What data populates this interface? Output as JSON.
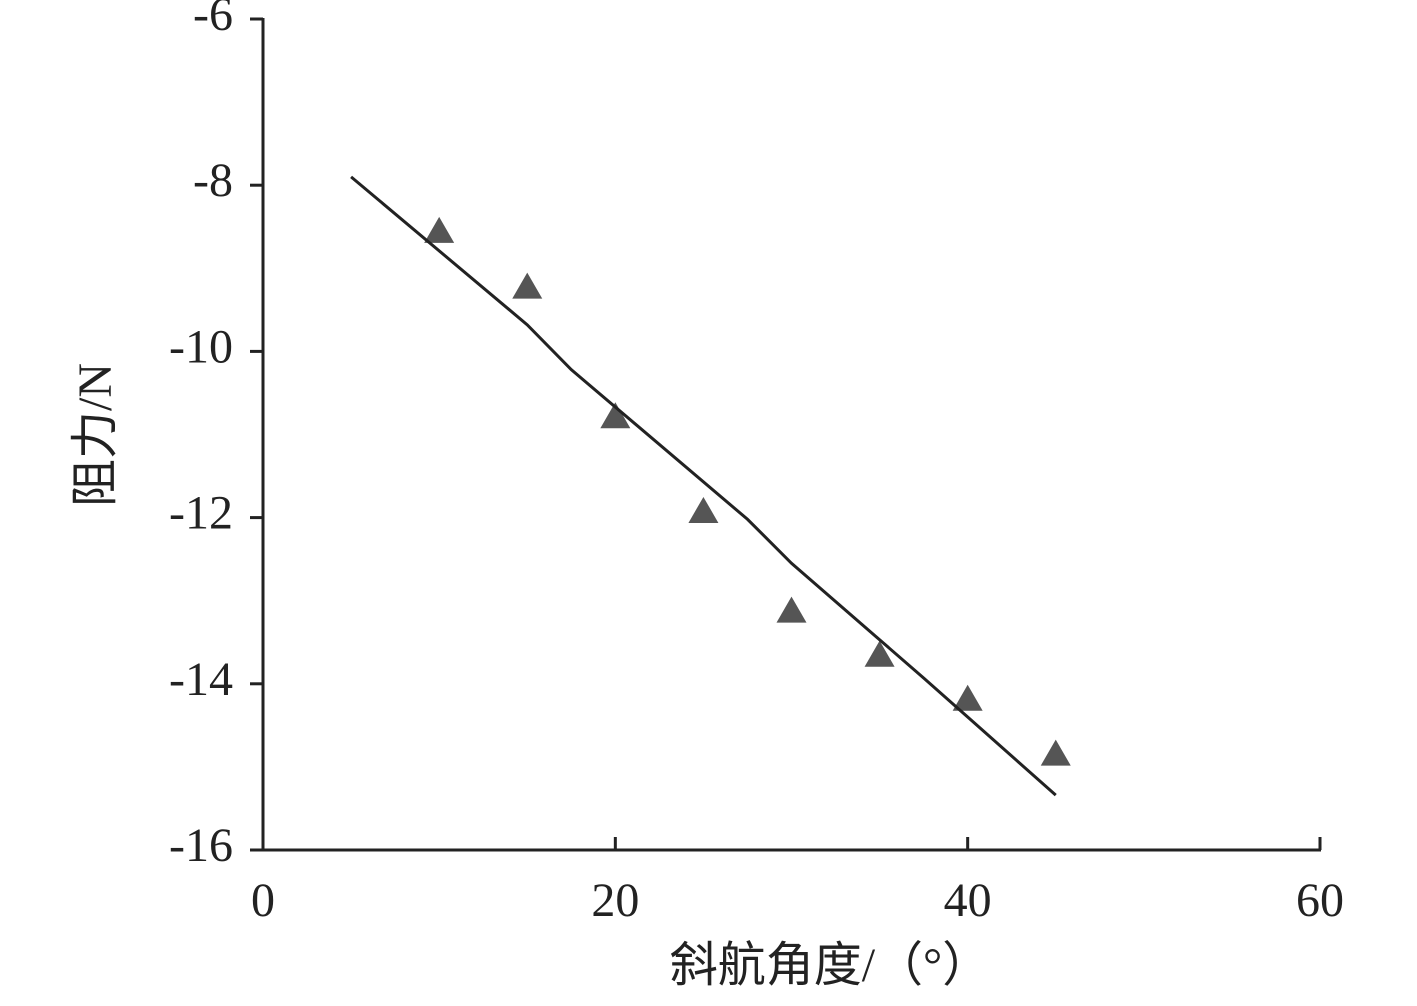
{
  "chart_data": {
    "type": "scatter",
    "x_label": "斜航角度/（°）",
    "y_label": "阻力/N",
    "xlim": [
      0,
      60
    ],
    "xticks": [
      0,
      20,
      40,
      60
    ],
    "ylim": [
      -16,
      -6
    ],
    "yticks": [
      -16,
      -14,
      -12,
      -10,
      -8,
      -6
    ],
    "series": [
      {
        "color": "#555555",
        "marker": "triangle",
        "x": [
          10,
          15,
          20,
          25,
          30,
          35,
          40,
          45
        ],
        "values": [
          -8.55,
          -9.22,
          -10.78,
          -11.92,
          -13.12,
          -13.65,
          -14.18,
          -14.84
        ]
      },
      {
        "color": "#222222",
        "marker": "line",
        "x": [
          5,
          15,
          17.5,
          27.5,
          30,
          37.5,
          40,
          45
        ],
        "values": [
          -7.9,
          -9.68,
          -10.22,
          -12.02,
          -12.55,
          -13.93,
          -14.4,
          -15.34
        ]
      }
    ]
  }
}
